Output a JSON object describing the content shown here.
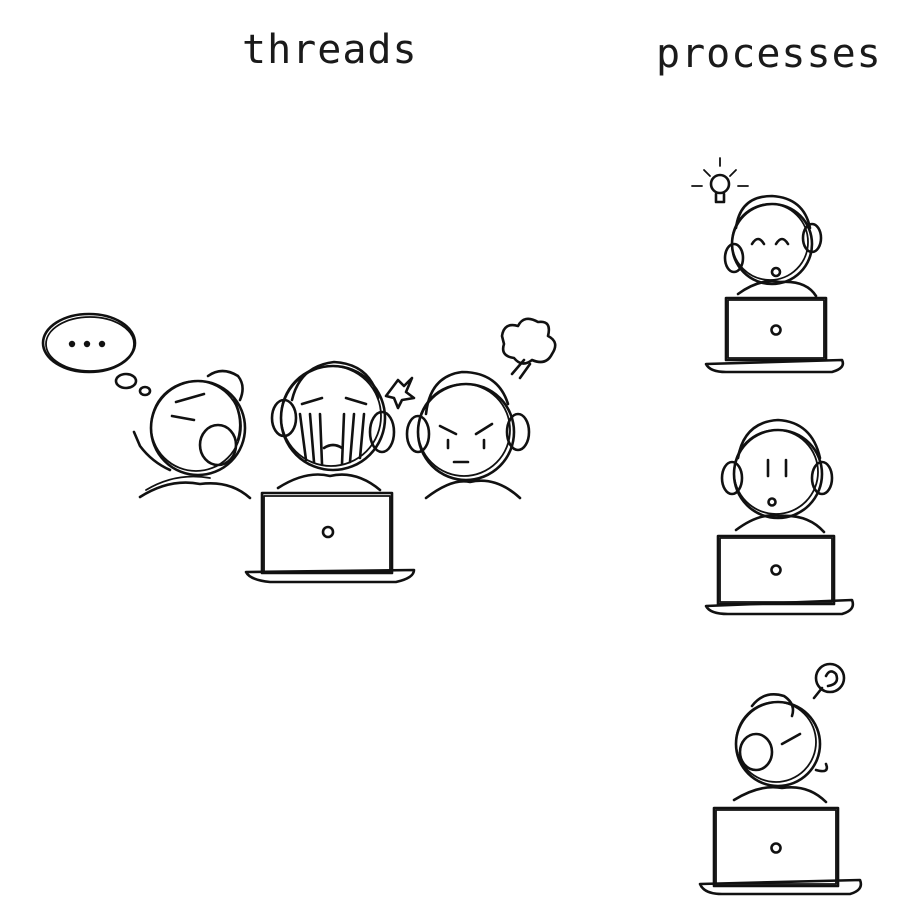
{
  "titles": {
    "threads": "threads",
    "processes": "processes"
  },
  "icons": {
    "thought_bubble": "thought-bubble-icon",
    "anger_mark": "anger-vein-icon",
    "steam_puff": "steam-puff-icon",
    "lightbulb": "lightbulb-icon",
    "swirl": "swirl-icon",
    "laptop": "laptop-icon"
  }
}
